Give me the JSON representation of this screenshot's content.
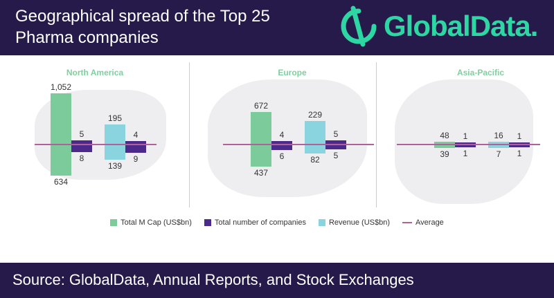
{
  "header": {
    "title": "Geographical spread of the Top 25 Pharma companies",
    "logo": "GlobalData."
  },
  "footer": {
    "source": "Source: GlobalData, Annual Reports, and Stock Exchanges"
  },
  "colors": {
    "mcap": "#7ccb9a",
    "companies": "#4b2a8c",
    "revenue": "#8ad4e0",
    "average": "#b0609a",
    "header": "#261a4a",
    "brand": "#2ed6a3"
  },
  "chart_data": {
    "type": "bar",
    "title": "Geographical spread of the Top 25 Pharma companies",
    "legend": [
      "Total M Cap (US$bn)",
      "Total number of companies",
      "Revenue (US$bn)",
      "Average"
    ],
    "legend_placement": "bottom",
    "categories": [
      "North America",
      "Europe",
      "Asia-Pacific"
    ],
    "series": [
      {
        "name": "Total M Cap (US$bn)",
        "above": [
          1052,
          672,
          48
        ],
        "below": [
          634,
          437,
          39
        ]
      },
      {
        "name": "Total number of companies (M Cap)",
        "above": [
          5,
          4,
          1
        ],
        "below": [
          8,
          6,
          1
        ]
      },
      {
        "name": "Revenue (US$bn)",
        "above": [
          195,
          229,
          16
        ],
        "below": [
          139,
          82,
          7
        ]
      },
      {
        "name": "Total number of companies (Revenue)",
        "above": [
          4,
          5,
          1
        ],
        "below": [
          9,
          5,
          1
        ]
      }
    ]
  }
}
